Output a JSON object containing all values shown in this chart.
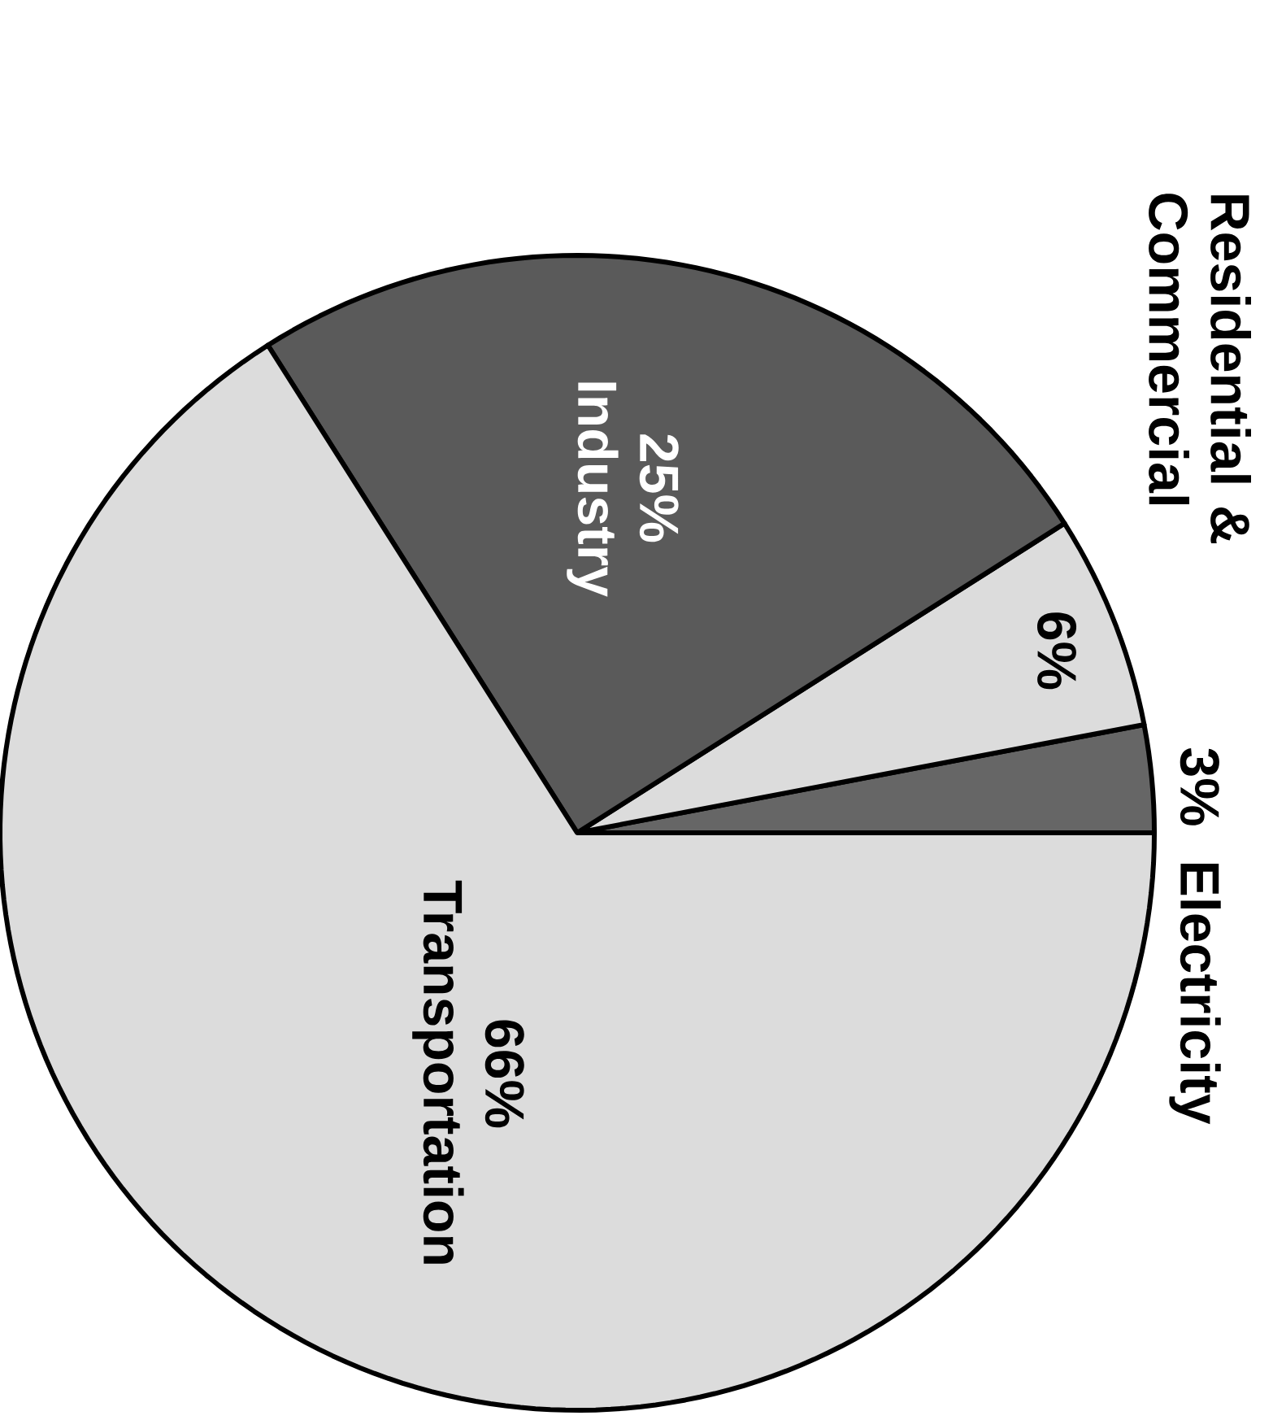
{
  "chart_data": {
    "type": "pie",
    "categories": [
      "Electricity",
      "Residential & Commercial",
      "Industry",
      "Transportation"
    ],
    "values": [
      3,
      6,
      25,
      66
    ],
    "value_labels": [
      "3%",
      "6%",
      "25%",
      "66%"
    ],
    "colors": [
      "#666666",
      "#dcdcdc",
      "#5a5a5a",
      "#dcdcdc"
    ]
  }
}
